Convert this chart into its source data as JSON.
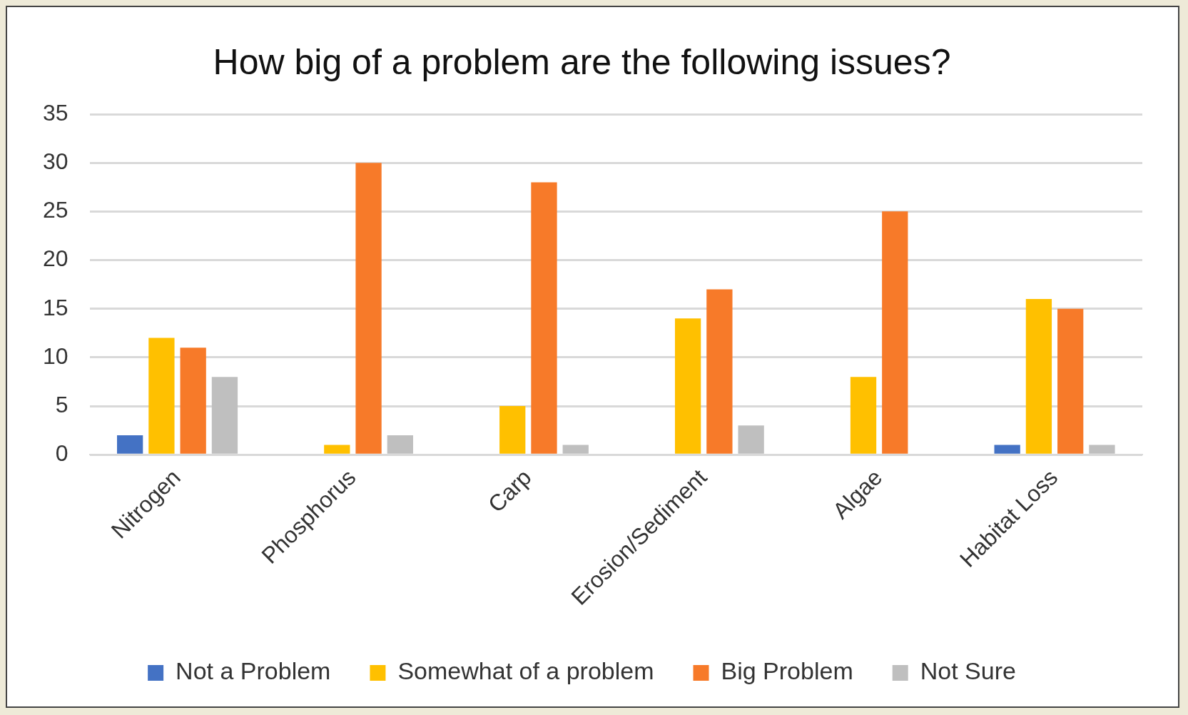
{
  "chart_data": {
    "type": "bar",
    "title": "How big of a problem are the following issues?",
    "categories": [
      "Nitrogen",
      "Phosphorus",
      "Carp",
      "Erosion/Sediment",
      "Algae",
      "Habitat Loss"
    ],
    "series": [
      {
        "name": "Not a Problem",
        "color": "#4472c4",
        "values": [
          2,
          0,
          0,
          0,
          0,
          1
        ]
      },
      {
        "name": "Somewhat of a problem",
        "color": "#ffc000",
        "values": [
          12,
          1,
          5,
          14,
          8,
          16
        ]
      },
      {
        "name": "Big Problem",
        "color": "#f77a29",
        "values": [
          11,
          30,
          28,
          17,
          25,
          15
        ]
      },
      {
        "name": "Not Sure",
        "color": "#bfbfbf",
        "values": [
          8,
          2,
          1,
          3,
          0,
          1
        ]
      }
    ],
    "ylim": [
      0,
      35
    ],
    "yticks": [
      0,
      5,
      10,
      15,
      20,
      25,
      30,
      35
    ],
    "grid": "y",
    "legend": "bottom"
  }
}
